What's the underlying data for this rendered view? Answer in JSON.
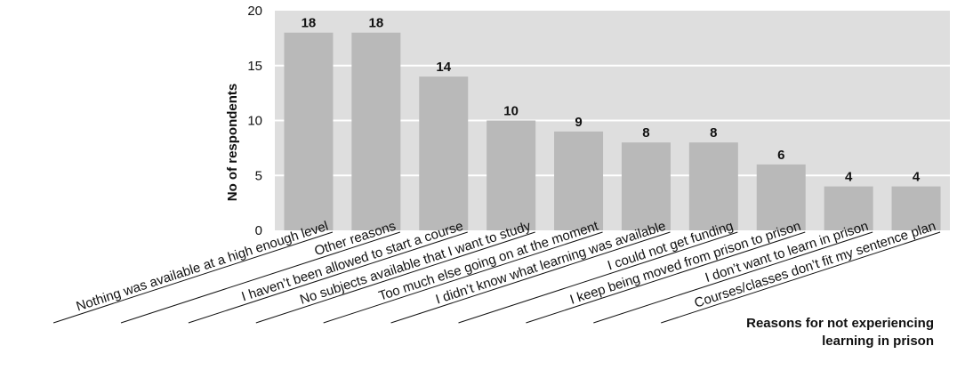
{
  "chart_data": {
    "type": "bar",
    "categories": [
      "Nothing was available at a high enough level",
      "Other reasons",
      "I haven’t been allowed to start a course",
      "No subjects available that I want to study",
      "Too much else going on at the moment",
      "I didn’t know what learning was available",
      "I could not get funding",
      "I keep being moved from prison to prison",
      "I don’t want to learn in prison",
      "Courses/classes don’t fit my sentence plan"
    ],
    "values": [
      18,
      18,
      14,
      10,
      9,
      8,
      8,
      6,
      4,
      4
    ],
    "ylabel": "No of respondents",
    "xlabel": "Reasons for not experiencing learning in prison",
    "ylim": [
      0,
      20
    ],
    "yticks": [
      0,
      5,
      10,
      15,
      20
    ],
    "grid": true,
    "colors": {
      "plot_background": "#dedede",
      "bar": "#b9b9b9",
      "gridline": "#ffffff",
      "text": "#111111"
    }
  }
}
